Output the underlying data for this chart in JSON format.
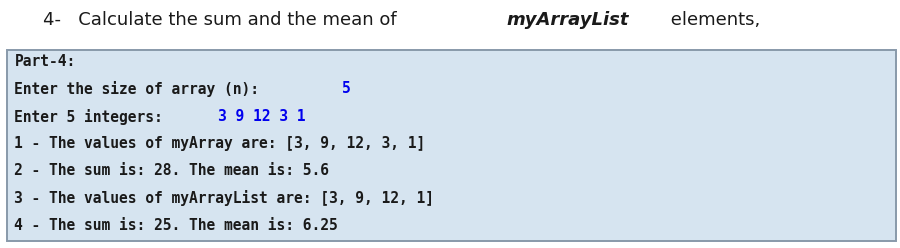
{
  "title_parts": [
    {
      "t": "4-   Calculate the sum and the mean of ",
      "style": "normal",
      "weight": "normal"
    },
    {
      "t": "myArrayList",
      "style": "italic",
      "weight": "bold"
    },
    {
      "t": " elements,",
      "style": "normal",
      "weight": "normal"
    }
  ],
  "title_color": "#1a1a1a",
  "title_fontsize": 13,
  "box_bg_color": "#d6e4f0",
  "box_border_color": "#8899aa",
  "bg_color": "#ffffff",
  "lines": [
    {
      "segments": [
        {
          "t": "Part-4:",
          "color": "#1a1a1a"
        }
      ]
    },
    {
      "segments": [
        {
          "t": "Enter the size of array (n): ",
          "color": "#1a1a1a"
        },
        {
          "t": "5",
          "color": "#0000ee"
        }
      ]
    },
    {
      "segments": [
        {
          "t": "Enter 5 integers: ",
          "color": "#1a1a1a"
        },
        {
          "t": "3 9 12 3 1",
          "color": "#0000ee"
        }
      ]
    },
    {
      "segments": [
        {
          "t": "1 - The values of myArray are: [3, 9, 12, 3, 1]",
          "color": "#1a1a1a"
        }
      ]
    },
    {
      "segments": [
        {
          "t": "2 - The sum is: 28. The mean is: 5.6",
          "color": "#1a1a1a"
        }
      ]
    },
    {
      "segments": [
        {
          "t": "3 - The values of myArrayList are: [3, 9, 12, 1]",
          "color": "#1a1a1a"
        }
      ]
    },
    {
      "segments": [
        {
          "t": "4 - The sum is: 25. The mean is: 6.25",
          "color": "#1a1a1a"
        }
      ]
    }
  ],
  "line_fontsize": 10.5,
  "fig_width": 9.0,
  "fig_height": 2.48,
  "dpi": 100
}
